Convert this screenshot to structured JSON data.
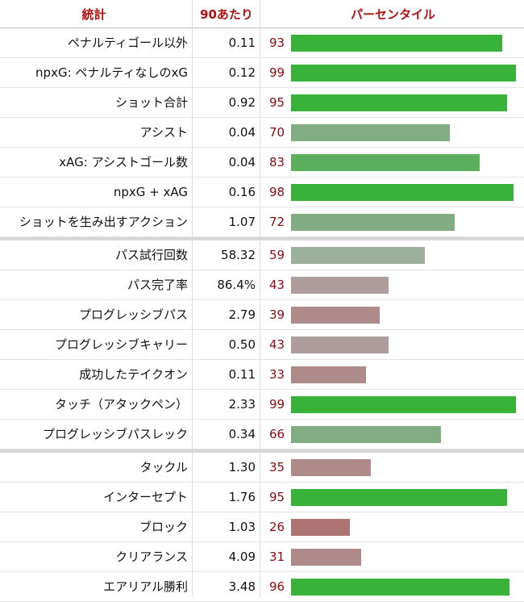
{
  "header": {
    "stat": "統計",
    "per90": "90あたり",
    "percentile": "パーセンタイル"
  },
  "colors": {
    "header_text": "#b01010",
    "percentile_text": "#8b0a0a"
  },
  "chart_data": {
    "type": "table",
    "columns": [
      "統計",
      "90あたり",
      "パーセンタイル"
    ],
    "groups": [
      {
        "rows": [
          {
            "label": "ペナルティゴール以外",
            "per90": "0.11",
            "percentile": 93
          },
          {
            "label": "npxG: ペナルティなしのxG",
            "per90": "0.12",
            "percentile": 99
          },
          {
            "label": "ショット合計",
            "per90": "0.92",
            "percentile": 95
          },
          {
            "label": "アシスト",
            "per90": "0.04",
            "percentile": 70
          },
          {
            "label": "xAG: アシストゴール数",
            "per90": "0.04",
            "percentile": 83
          },
          {
            "label": "npxG + xAG",
            "per90": "0.16",
            "percentile": 98
          },
          {
            "label": "ショットを生み出すアクション",
            "per90": "1.07",
            "percentile": 72
          }
        ]
      },
      {
        "rows": [
          {
            "label": "パス試行回数",
            "per90": "58.32",
            "percentile": 59
          },
          {
            "label": "パス完了率",
            "per90": "86.4%",
            "percentile": 43
          },
          {
            "label": "プログレッシブパス",
            "per90": "2.79",
            "percentile": 39
          },
          {
            "label": "プログレッシブキャリー",
            "per90": "0.50",
            "percentile": 43
          },
          {
            "label": "成功したテイクオン",
            "per90": "0.11",
            "percentile": 33
          },
          {
            "label": "タッチ（アタックペン）",
            "per90": "2.33",
            "percentile": 99
          },
          {
            "label": "プログレッシブパスレック",
            "per90": "0.34",
            "percentile": 66
          }
        ]
      },
      {
        "rows": [
          {
            "label": "タックル",
            "per90": "1.30",
            "percentile": 35
          },
          {
            "label": "インターセプト",
            "per90": "1.76",
            "percentile": 95
          },
          {
            "label": "ブロック",
            "per90": "1.03",
            "percentile": 26
          },
          {
            "label": "クリアランス",
            "per90": "4.09",
            "percentile": 31
          },
          {
            "label": "エアリアル勝利",
            "per90": "3.48",
            "percentile": 96
          }
        ]
      }
    ],
    "percentile_range": [
      0,
      100
    ]
  }
}
